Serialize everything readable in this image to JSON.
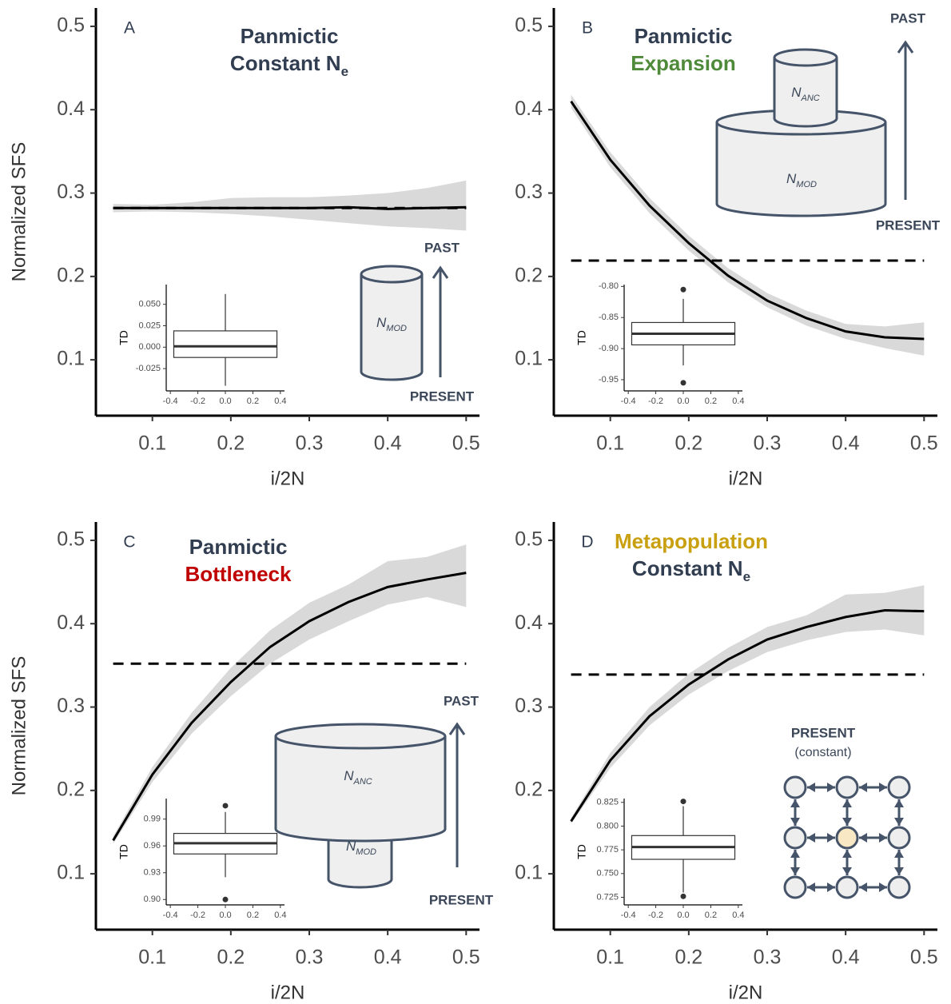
{
  "chart_data": [
    {
      "type": "line",
      "panel": "A",
      "title": [
        {
          "text": "Panmictic",
          "color": "#313d50"
        },
        {
          "text": "Constant N",
          "sub": "e",
          "color": "#313d50"
        }
      ],
      "xlabel": "i/2N",
      "ylabel": "Normalized SFS",
      "x": [
        0.05,
        0.1,
        0.15,
        0.2,
        0.25,
        0.3,
        0.35,
        0.4,
        0.45,
        0.5
      ],
      "values": [
        0.282,
        0.282,
        0.282,
        0.282,
        0.282,
        0.282,
        0.283,
        0.281,
        0.282,
        0.283
      ],
      "band_lower": [
        0.277,
        0.278,
        0.277,
        0.275,
        0.272,
        0.268,
        0.264,
        0.26,
        0.258,
        0.255
      ],
      "band_upper": [
        0.287,
        0.286,
        0.289,
        0.294,
        0.295,
        0.295,
        0.297,
        0.3,
        0.306,
        0.315
      ],
      "reference_line": 0.282,
      "color": "#000000",
      "band_color": "#d9d9d9",
      "xlim": [
        0.028,
        0.517
      ],
      "ylim": [
        0.033,
        0.522
      ],
      "xticks": [
        0.1,
        0.2,
        0.3,
        0.4,
        0.5
      ],
      "yticks": [
        0.1,
        0.2,
        0.3,
        0.4,
        0.5
      ],
      "inset": {
        "type": "box",
        "ylabel": "TD",
        "q1": -0.012,
        "median": 0.001,
        "q3": 0.019,
        "whisker_low": -0.045,
        "whisker_high": 0.062,
        "outliers": [],
        "xlim": [
          -0.43,
          0.43
        ],
        "ylim": [
          -0.051,
          0.073
        ],
        "xticks": [
          -0.4,
          -0.2,
          {
            "value": 0,
            "label": "0.0"
          },
          0.2,
          0.4
        ],
        "yticks": [
          -0.025,
          {
            "value": 0,
            "label": "0.000"
          },
          0.025,
          {
            "value": 0.05,
            "label": "0.050"
          }
        ]
      },
      "diagram": {
        "past": "PAST",
        "present": "PRESENT",
        "populations": [
          {
            "text": "N",
            "sub": "MOD"
          }
        ]
      }
    },
    {
      "type": "line",
      "panel": "B",
      "title": [
        {
          "text": "Panmictic",
          "color": "#313d50"
        },
        {
          "text": "Expansion",
          "color": "#4e8a3a"
        }
      ],
      "xlabel": "i/2N",
      "x": [
        0.05,
        0.1,
        0.15,
        0.2,
        0.25,
        0.3,
        0.35,
        0.4,
        0.45,
        0.5
      ],
      "values": [
        0.41,
        0.34,
        0.285,
        0.24,
        0.201,
        0.171,
        0.15,
        0.134,
        0.127,
        0.125
      ],
      "band_lower": [
        0.402,
        0.331,
        0.276,
        0.231,
        0.193,
        0.163,
        0.141,
        0.125,
        0.114,
        0.105
      ],
      "band_upper": [
        0.418,
        0.349,
        0.294,
        0.249,
        0.21,
        0.18,
        0.159,
        0.143,
        0.14,
        0.145
      ],
      "reference_line": 0.219,
      "color": "#000000",
      "band_color": "#d9d9d9",
      "xlim": [
        0.028,
        0.517
      ],
      "ylim": [
        0.033,
        0.522
      ],
      "xticks": [
        0.1,
        0.2,
        0.3,
        0.4,
        0.5
      ],
      "yticks": [
        0.1,
        0.2,
        0.3,
        0.4,
        0.5
      ],
      "inset": {
        "type": "box",
        "ylabel": "TD",
        "q1": -0.894,
        "median": -0.876,
        "q3": -0.858,
        "whisker_low": -0.927,
        "whisker_high": -0.82,
        "outliers": [
          -0.805,
          -0.955
        ],
        "xlim": [
          -0.43,
          0.43
        ],
        "ylim": [
          -0.968,
          -0.797
        ],
        "xticks": [
          -0.4,
          -0.2,
          {
            "value": 0,
            "label": "0.0"
          },
          0.2,
          0.4
        ],
        "yticks": [
          -0.95,
          {
            "value": -0.9,
            "label": "-0.90"
          },
          -0.85,
          {
            "value": -0.8,
            "label": "-0.80"
          }
        ]
      },
      "diagram": {
        "past": "PAST",
        "present": "PRESENT",
        "populations": [
          {
            "text": "N",
            "sub": "ANC"
          },
          {
            "text": "N",
            "sub": "MOD"
          }
        ]
      }
    },
    {
      "type": "line",
      "panel": "C",
      "title": [
        {
          "text": "Panmictic",
          "color": "#313d50"
        },
        {
          "text": "Bottleneck",
          "color": "#c00000"
        }
      ],
      "xlabel": "i/2N",
      "ylabel": "Normalized SFS",
      "x": [
        0.05,
        0.1,
        0.15,
        0.2,
        0.25,
        0.3,
        0.35,
        0.4,
        0.45,
        0.5
      ],
      "values": [
        0.14,
        0.219,
        0.281,
        0.33,
        0.372,
        0.403,
        0.426,
        0.444,
        0.453,
        0.461
      ],
      "band_lower": [
        0.136,
        0.21,
        0.268,
        0.313,
        0.352,
        0.381,
        0.403,
        0.423,
        0.432,
        0.42
      ],
      "band_upper": [
        0.145,
        0.228,
        0.293,
        0.347,
        0.392,
        0.425,
        0.447,
        0.475,
        0.48,
        0.495
      ],
      "reference_line": 0.352,
      "color": "#000000",
      "band_color": "#d9d9d9",
      "xlim": [
        0.028,
        0.517
      ],
      "ylim": [
        0.033,
        0.522
      ],
      "xticks": [
        0.1,
        0.2,
        0.3,
        0.4,
        0.5
      ],
      "yticks": [
        0.1,
        0.2,
        0.3,
        0.4,
        0.5
      ],
      "inset": {
        "type": "box",
        "ylabel": "TD",
        "q1": 0.951,
        "median": 0.963,
        "q3": 0.974,
        "whisker_low": 0.925,
        "whisker_high": 0.998,
        "outliers": [
          1.005,
          0.9
        ],
        "xlim": [
          -0.43,
          0.43
        ],
        "ylim": [
          0.894,
          1.013
        ],
        "xticks": [
          -0.4,
          -0.2,
          {
            "value": 0,
            "label": "0.0"
          },
          0.2,
          0.4
        ],
        "yticks": [
          {
            "value": 0.9,
            "label": "0.90"
          },
          0.93,
          0.96,
          0.99
        ]
      },
      "diagram": {
        "past": "PAST",
        "present": "PRESENT",
        "populations": [
          {
            "text": "N",
            "sub": "ANC"
          },
          {
            "text": "N",
            "sub": "MOD"
          }
        ]
      }
    },
    {
      "type": "line",
      "panel": "D",
      "title": [
        {
          "text": "Metapopulation",
          "color": "#c8a010"
        },
        {
          "text": "Constant N",
          "sub": "e",
          "color": "#313d50"
        }
      ],
      "xlabel": "i/2N",
      "x": [
        0.05,
        0.1,
        0.15,
        0.2,
        0.25,
        0.3,
        0.35,
        0.4,
        0.45,
        0.5
      ],
      "values": [
        0.163,
        0.236,
        0.289,
        0.327,
        0.357,
        0.381,
        0.396,
        0.408,
        0.416,
        0.415
      ],
      "band_lower": [
        0.16,
        0.227,
        0.278,
        0.315,
        0.343,
        0.366,
        0.38,
        0.39,
        0.393,
        0.386
      ],
      "band_upper": [
        0.167,
        0.245,
        0.3,
        0.34,
        0.371,
        0.396,
        0.41,
        0.435,
        0.437,
        0.446
      ],
      "reference_line": 0.339,
      "color": "#000000",
      "band_color": "#d9d9d9",
      "xlim": [
        0.028,
        0.517
      ],
      "ylim": [
        0.033,
        0.522
      ],
      "xticks": [
        0.1,
        0.2,
        0.3,
        0.4,
        0.5
      ],
      "yticks": [
        0.1,
        0.2,
        0.3,
        0.4,
        0.5
      ],
      "inset": {
        "type": "box",
        "ylabel": "TD",
        "q1": 0.765,
        "median": 0.778,
        "q3": 0.79,
        "whisker_low": 0.73,
        "whisker_high": 0.821,
        "outliers": [
          0.826,
          0.726
        ],
        "xlim": [
          -0.43,
          0.43
        ],
        "ylim": [
          0.717,
          0.829
        ],
        "xticks": [
          -0.4,
          -0.2,
          {
            "value": 0,
            "label": "0.0"
          },
          0.2,
          0.4
        ],
        "yticks": [
          0.725,
          {
            "value": 0.75,
            "label": "0.750"
          },
          0.775,
          {
            "value": 0.8,
            "label": "0.800"
          },
          0.825
        ]
      },
      "diagram": {
        "present": "PRESENT",
        "note": "(constant)"
      }
    }
  ]
}
